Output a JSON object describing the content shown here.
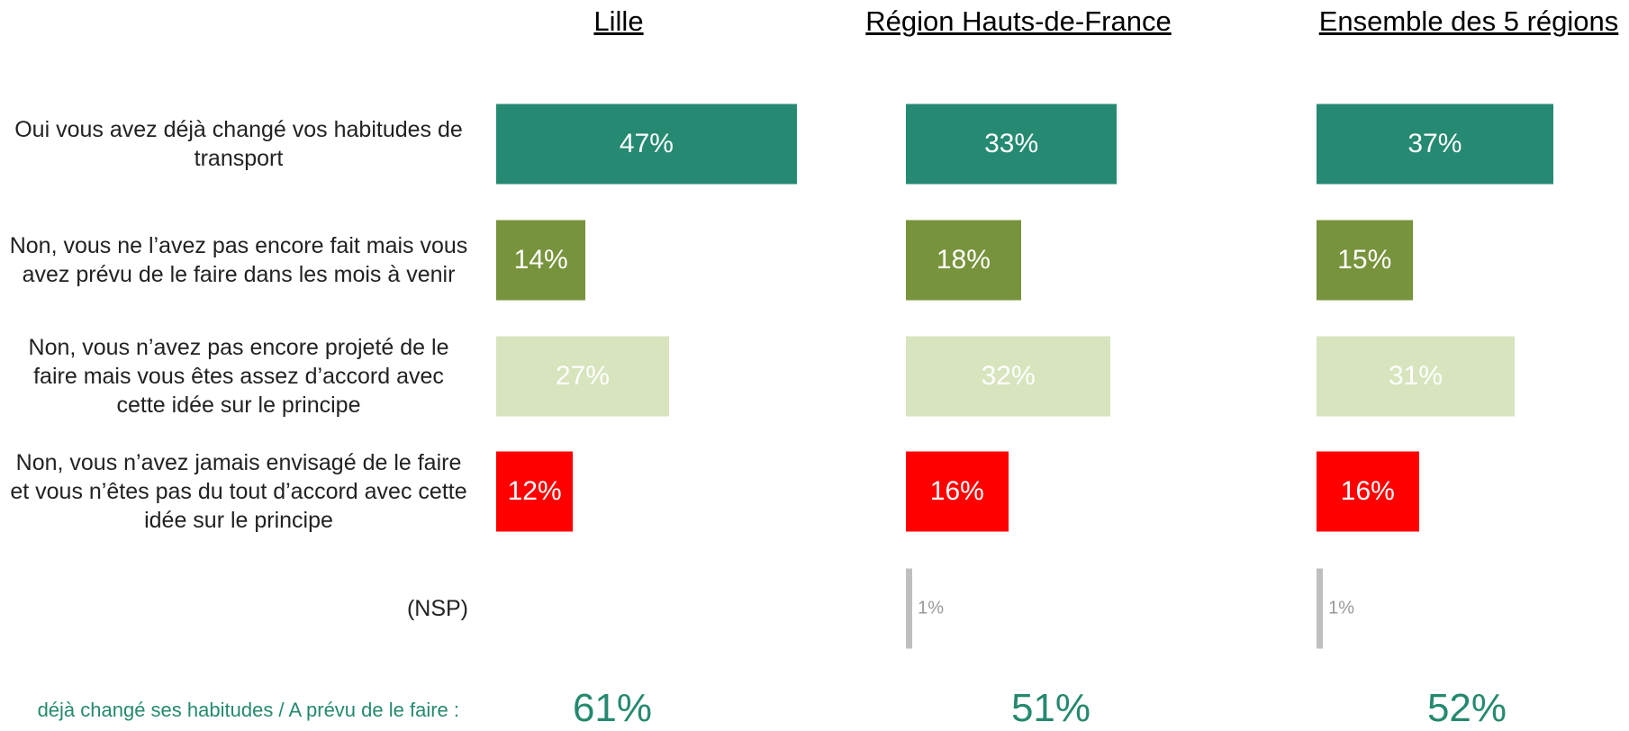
{
  "chart_data": [
    {
      "type": "bar",
      "title": "Lille",
      "categories": [
        "Oui vous avez déjà changé vos habitudes de transport",
        "Non, vous ne l’avez pas encore fait mais vous avez prévu de le faire dans les mois à venir",
        "Non, vous n’avez pas encore projeté de le faire mais vous êtes assez d’accord avec cette idée sur le principe",
        "Non, vous n’avez jamais envisagé de le faire et vous n’êtes pas du tout d’accord avec cette idée sur le principe",
        "(NSP)"
      ],
      "values": [
        47,
        14,
        27,
        12,
        null
      ],
      "value_labels": [
        "47%",
        "14%",
        "27%",
        "12%",
        null
      ],
      "colors": [
        "#258a71",
        "#77933c",
        "#d7e4bd",
        "#ff0000",
        "#bfbfbf"
      ],
      "summary_label": "déjà changé ses habitudes / A prévu de le faire :",
      "summary": 61,
      "summary_value_label": "61%"
    },
    {
      "type": "bar",
      "title": "Région Hauts-de-France",
      "values": [
        33,
        18,
        32,
        16,
        1
      ],
      "value_labels": [
        "33%",
        "18%",
        "32%",
        "16%",
        "1%"
      ],
      "colors": [
        "#258a71",
        "#77933c",
        "#d7e4bd",
        "#ff0000",
        "#bfbfbf"
      ],
      "summary": 51,
      "summary_value_label": "51%"
    },
    {
      "type": "bar",
      "title": "Ensemble des 5 régions",
      "values": [
        37,
        15,
        31,
        16,
        1
      ],
      "value_labels": [
        "37%",
        "15%",
        "31%",
        "16%",
        "1%"
      ],
      "colors": [
        "#258a71",
        "#77933c",
        "#d7e4bd",
        "#ff0000",
        "#bfbfbf"
      ],
      "summary": 52,
      "summary_value_label": "52%"
    }
  ]
}
